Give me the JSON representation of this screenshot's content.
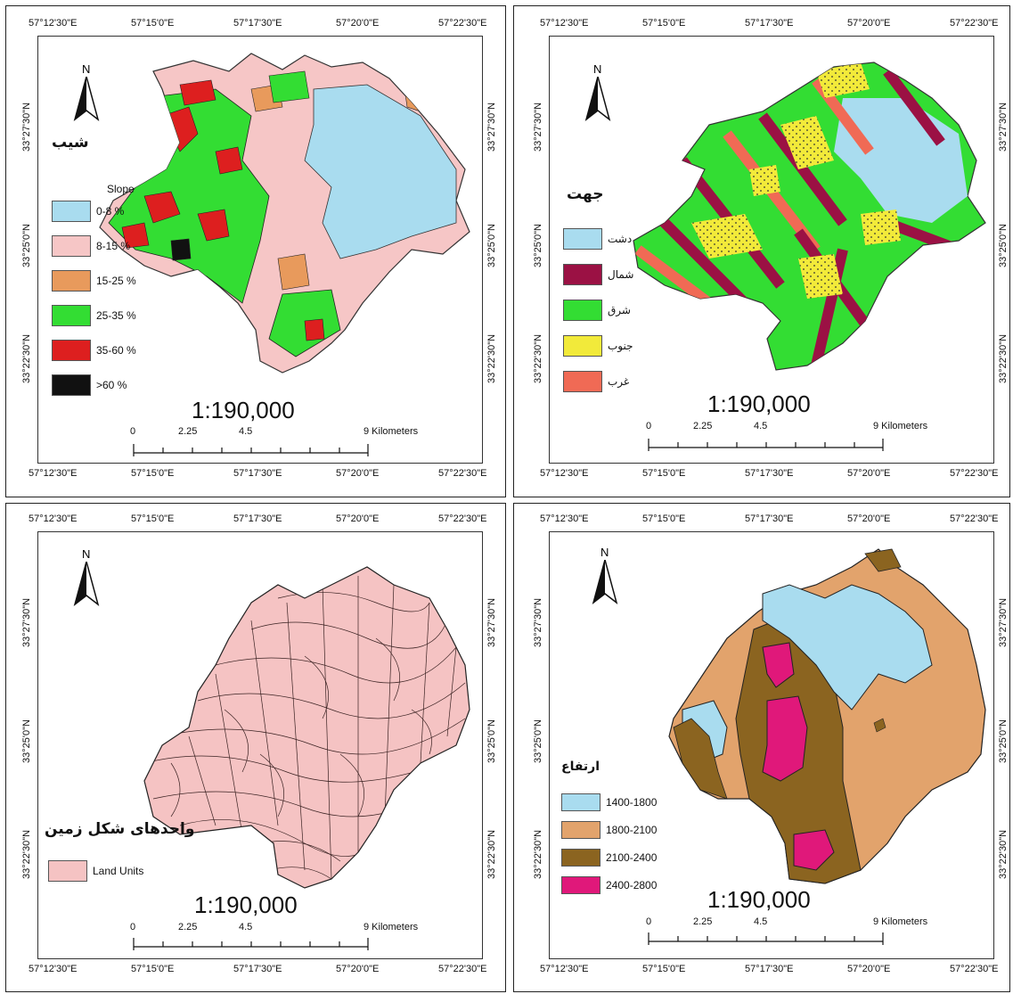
{
  "coords": {
    "lon": [
      "57°12'30\"E",
      "57°15'0\"E",
      "57°17'30\"E",
      "57°20'0\"E",
      "57°22'30\"E"
    ],
    "lat": [
      "33°27'30\"N",
      "33°25'0\"N",
      "33°22'30\"N"
    ]
  },
  "north_label": "N",
  "scale": {
    "ratio": "1:190,000",
    "ticks": [
      "0",
      "2.25",
      "4.5",
      "9 Kilometers"
    ]
  },
  "panels": {
    "slope": {
      "title_fa": "شیب",
      "legend_title": "Slope",
      "items": [
        {
          "label": "0-8 %",
          "color": "#a9dcef"
        },
        {
          "label": "8-15 %",
          "color": "#f6c6c6"
        },
        {
          "label": "15-25 %",
          "color": "#e89a5c"
        },
        {
          "label": "25-35 %",
          "color": "#33dd33"
        },
        {
          "label": "35-60 %",
          "color": "#dd1f1f"
        },
        {
          "label": ">60 %",
          "color": "#111111"
        }
      ]
    },
    "aspect": {
      "title_fa": "جهت",
      "items": [
        {
          "label": "دشت",
          "color": "#a9dcef"
        },
        {
          "label": "شمال",
          "color": "#9b1144"
        },
        {
          "label": "شرق",
          "color": "#33dd33"
        },
        {
          "label": "جنوب",
          "color": "#f2ea3a"
        },
        {
          "label": "غرب",
          "color": "#f06a55"
        }
      ]
    },
    "landunits": {
      "title_fa": "واحدهای شکل زمین",
      "items": [
        {
          "label": "Land Units",
          "color": "#f5c3c3"
        }
      ]
    },
    "elevation": {
      "title_fa": "ارتفاع",
      "items": [
        {
          "label": "1400-1800",
          "color": "#a9dcef"
        },
        {
          "label": "1800-2100",
          "color": "#e2a36c"
        },
        {
          "label": "2100-2400",
          "color": "#8b6420"
        },
        {
          "label": "2400-2800",
          "color": "#e0187a"
        }
      ]
    }
  }
}
